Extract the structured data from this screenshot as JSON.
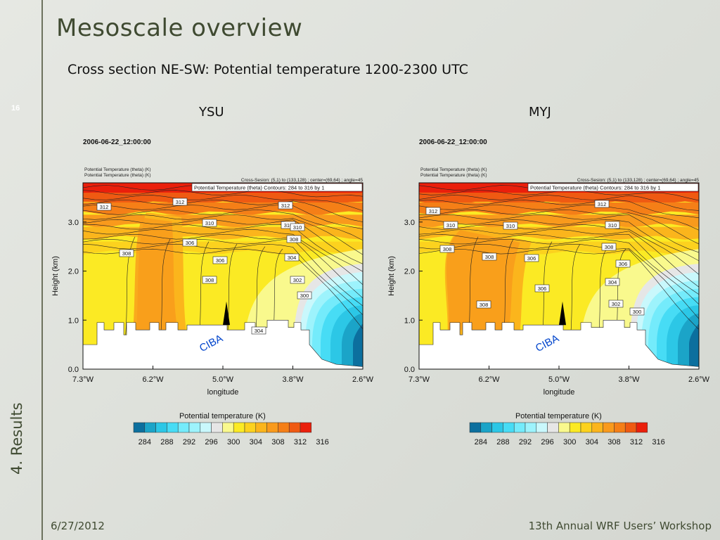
{
  "slide": {
    "title": "Mesoscale overview",
    "subtitle": "Cross section NE-SW: Potential temperature 1200-2300 UTC",
    "slide_number": "16",
    "section_label": "4. Results",
    "footer_date": "6/27/2012",
    "footer_event": "13th Annual WRF Users’ Workshop"
  },
  "colors": {
    "colorbar": [
      "#0c6f9e",
      "#1ba4c8",
      "#2cc7e6",
      "#47dcf5",
      "#74ebfb",
      "#9df3fc",
      "#c9f8fc",
      "#e6e6e6",
      "#f9f98d",
      "#fbea24",
      "#fcd21e",
      "#fbb51c",
      "#f99a1c",
      "#f57f17",
      "#ef5a12",
      "#ea1f0b"
    ],
    "slide_title": "#3f4a31"
  },
  "chart_data": [
    {
      "type": "heatmap",
      "panel_label": "YSU",
      "timestamp": "2006-06-22_12:00:00",
      "field_lines": [
        "Potential Temperature (theta)   (K)",
        "Potential Temperature (theta)   (K)"
      ],
      "cross_section_info": "Cross-Sesion: (5,1) to (133,128) ; center=(69,64) ; angle=45",
      "contour_info": "Potential Temperature (theta)   Contours: 284 to 316 by 1",
      "xlabel": "longitude",
      "ylabel": "Height (km)",
      "xticks": [
        "7.3°W",
        "6.2°W",
        "5.0°W",
        "3.8°W",
        "2.6°W"
      ],
      "yticks": [
        "0.0",
        "1.0",
        "2.0",
        "3.0"
      ],
      "ylim": [
        0,
        3.8
      ],
      "annotation": "CIBA",
      "contour_labels": [
        "312",
        "312",
        "312",
        "310",
        "310",
        "310",
        "308",
        "308",
        "306",
        "306",
        "308",
        "304",
        "302",
        "300",
        "304"
      ],
      "colorbar_title": "Potential temperature (K)",
      "colorbar_ticks": [
        "284",
        "288",
        "292",
        "296",
        "300",
        "304",
        "308",
        "312",
        "316"
      ]
    },
    {
      "type": "heatmap",
      "panel_label": "MYJ",
      "timestamp": "2006-06-22_12:00:00",
      "field_lines": [
        "Potential Temperature (theta)   (K)",
        "Potential Temperature (theta)   (K)"
      ],
      "cross_section_info": "Cross-Sesion: (5,1) to (133,128) ; center=(69,64) ; angle=45",
      "contour_info": "Potential Temperature (theta)   Contours: 284 to 316 by 1",
      "xlabel": "longitude",
      "ylabel": "Height (km)",
      "xticks": [
        "7.3°W",
        "6.2°W",
        "5.0°W",
        "3.8°W",
        "2.6°W"
      ],
      "yticks": [
        "0.0",
        "1.0",
        "2.0",
        "3.0"
      ],
      "ylim": [
        0,
        3.8
      ],
      "annotation": "CIBA",
      "contour_labels": [
        "312",
        "312",
        "310",
        "310",
        "310",
        "308",
        "308",
        "306",
        "308",
        "306",
        "308",
        "306",
        "304",
        "302",
        "300"
      ],
      "colorbar_title": "Potential temperature (K)",
      "colorbar_ticks": [
        "284",
        "288",
        "292",
        "296",
        "300",
        "304",
        "308",
        "312",
        "316"
      ]
    }
  ]
}
